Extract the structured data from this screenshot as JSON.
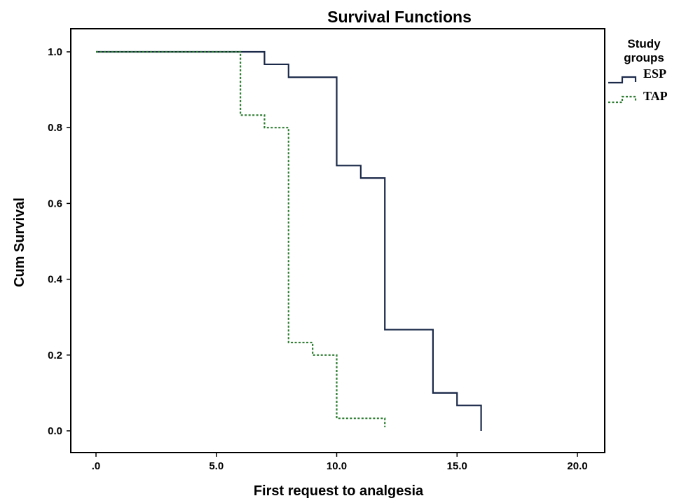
{
  "chart_data": {
    "type": "line",
    "title": "Survival Functions",
    "xlabel": "First request to analgesia",
    "ylabel": "Cum Survival",
    "xlim": [
      0,
      20
    ],
    "ylim": [
      0,
      1
    ],
    "x_ticks": [
      {
        "value": 0,
        "label": ".0"
      },
      {
        "value": 5,
        "label": "5.0"
      },
      {
        "value": 10,
        "label": "10.0"
      },
      {
        "value": 15,
        "label": "15.0"
      },
      {
        "value": 20,
        "label": "20.0"
      }
    ],
    "y_ticks": [
      {
        "value": 0,
        "label": "0.0"
      },
      {
        "value": 0.2,
        "label": "0.2"
      },
      {
        "value": 0.4,
        "label": "0.4"
      },
      {
        "value": 0.6,
        "label": "0.6"
      },
      {
        "value": 0.8,
        "label": "0.8"
      },
      {
        "value": 1.0,
        "label": "1.0"
      }
    ],
    "step": true,
    "grid": false,
    "legend": {
      "title_lines": [
        "Study",
        "groups"
      ],
      "placement": "right"
    },
    "series": [
      {
        "name": "ESP",
        "color": "#1c2a4a",
        "style": "solid",
        "x": [
          0,
          7,
          8,
          10,
          11,
          12,
          14,
          15,
          16
        ],
        "y": [
          1.0,
          0.967,
          0.933,
          0.7,
          0.667,
          0.267,
          0.1,
          0.067,
          0.0
        ]
      },
      {
        "name": "TAP",
        "color": "#2e7d32",
        "style": "dotted",
        "x": [
          0,
          6,
          7,
          8,
          9,
          10,
          12
        ],
        "y": [
          1.0,
          0.833,
          0.8,
          0.233,
          0.2,
          0.033,
          0.01
        ]
      }
    ]
  }
}
